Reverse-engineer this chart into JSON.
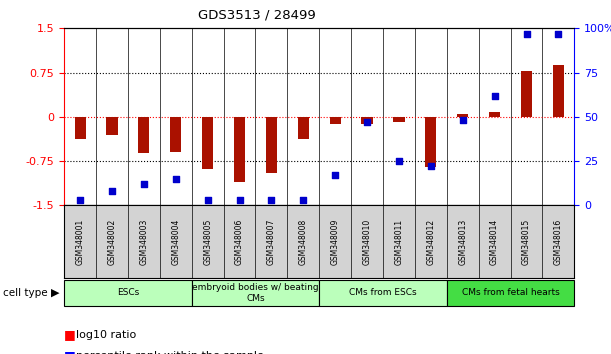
{
  "title": "GDS3513 / 28499",
  "samples": [
    "GSM348001",
    "GSM348002",
    "GSM348003",
    "GSM348004",
    "GSM348005",
    "GSM348006",
    "GSM348007",
    "GSM348008",
    "GSM348009",
    "GSM348010",
    "GSM348011",
    "GSM348012",
    "GSM348013",
    "GSM348014",
    "GSM348015",
    "GSM348016"
  ],
  "log10_ratio": [
    -0.38,
    -0.3,
    -0.62,
    -0.6,
    -0.88,
    -1.1,
    -0.95,
    -0.38,
    -0.12,
    -0.12,
    -0.08,
    -0.85,
    0.05,
    0.08,
    0.78,
    0.88
  ],
  "percentile_rank": [
    3,
    8,
    12,
    15,
    3,
    3,
    3,
    3,
    17,
    47,
    25,
    22,
    48,
    62,
    97,
    97
  ],
  "cell_type_groups": [
    {
      "label": "ESCs",
      "start": 0,
      "end": 3,
      "color": "#bbffbb"
    },
    {
      "label": "embryoid bodies w/ beating\nCMs",
      "start": 4,
      "end": 7,
      "color": "#bbffbb"
    },
    {
      "label": "CMs from ESCs",
      "start": 8,
      "end": 11,
      "color": "#bbffbb"
    },
    {
      "label": "CMs from fetal hearts",
      "start": 12,
      "end": 15,
      "color": "#44dd44"
    }
  ],
  "bar_color": "#aa1100",
  "dot_color": "#0000cc",
  "ylim_left": [
    -1.5,
    1.5
  ],
  "ylim_right": [
    0,
    100
  ],
  "yticks_left": [
    -1.5,
    -0.75,
    0,
    0.75,
    1.5
  ],
  "yticks_right": [
    0,
    25,
    50,
    75,
    100
  ],
  "ytick_labels_right": [
    "0",
    "25",
    "50",
    "75",
    "100%"
  ],
  "bar_width": 0.35,
  "dot_size": 25
}
